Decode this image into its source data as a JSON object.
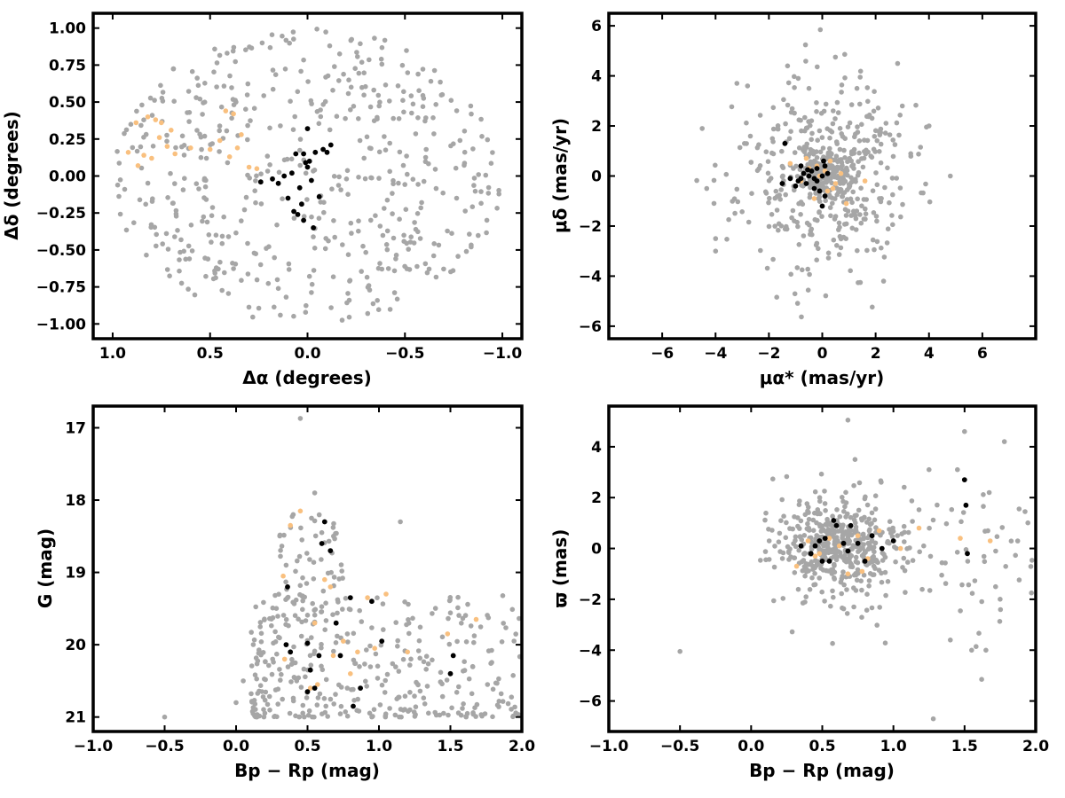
{
  "colors": {
    "field_stars": "#a6a6a6",
    "members_black": "#000000",
    "members_orange": "#f9c07f",
    "axes": "#000000",
    "background": "#ffffff"
  },
  "chart_data": [
    {
      "id": "sky",
      "type": "scatter",
      "title": "",
      "xlabel": "Δα (degrees)",
      "ylabel": "Δδ (degrees)",
      "xlim": [
        1.1,
        -1.1
      ],
      "ylim": [
        -1.1,
        1.1
      ],
      "x_inverted": true,
      "xticks": [
        1.0,
        0.5,
        0.0,
        -0.5,
        -1.0
      ],
      "xtick_labels": [
        "1.0",
        "0.5",
        "0.0",
        "−0.5",
        "−1.0"
      ],
      "yticks": [
        1.0,
        0.75,
        0.5,
        0.25,
        0.0,
        -0.25,
        -0.5,
        -0.75,
        -1.0
      ],
      "ytick_labels": [
        "1.00",
        "0.75",
        "0.50",
        "0.25",
        "0.00",
        "−0.25",
        "−0.50",
        "−0.75",
        "−1.00"
      ],
      "grid": false,
      "series": [
        {
          "color_key": "field_stars",
          "random": {
            "seed": 11,
            "n": 520,
            "shape": "ellipse",
            "cx": 0.0,
            "cy": 0.0,
            "rx": 1.0,
            "ry": 1.0
          }
        },
        {
          "color_key": "members_orange",
          "x": [
            0.92,
            0.87,
            0.84,
            0.8,
            0.78,
            0.75,
            0.72,
            0.7,
            0.68,
            0.82,
            0.6,
            0.5,
            0.45,
            0.4,
            0.38,
            0.36,
            0.34,
            0.3,
            0.42,
            0.26,
            0.88,
            0.76
          ],
          "y": [
            0.16,
            0.07,
            0.14,
            0.12,
            0.38,
            0.36,
            0.2,
            0.31,
            0.15,
            0.4,
            0.19,
            0.18,
            0.24,
            0.13,
            0.42,
            0.19,
            0.28,
            0.06,
            0.44,
            0.05,
            0.36,
            0.26
          ]
        },
        {
          "color_key": "members_black",
          "x": [
            0.24,
            0.18,
            0.15,
            0.12,
            0.1,
            0.08,
            0.06,
            0.05,
            0.04,
            0.03,
            0.02,
            0.01,
            0.0,
            -0.01,
            -0.02,
            -0.03,
            -0.04,
            -0.06,
            -0.08,
            -0.1,
            -0.12,
            0.07,
            0.02,
            0.0
          ],
          "y": [
            -0.04,
            -0.02,
            -0.05,
            0.0,
            -0.15,
            0.02,
            0.15,
            -0.26,
            -0.08,
            -0.19,
            -0.3,
            0.09,
            0.06,
            0.1,
            -0.03,
            -0.35,
            0.16,
            -0.14,
            0.18,
            0.16,
            0.21,
            -0.24,
            0.15,
            0.32
          ]
        }
      ]
    },
    {
      "id": "proper-motion",
      "type": "scatter",
      "title": "",
      "xlabel": "μα* (mas/yr)",
      "ylabel": "μδ (mas/yr)",
      "xlim": [
        -8,
        8
      ],
      "ylim": [
        -6.5,
        6.5
      ],
      "xticks": [
        -6,
        -4,
        -2,
        0,
        2,
        4,
        6
      ],
      "xtick_labels": [
        "−6",
        "−4",
        "−2",
        "0",
        "2",
        "4",
        "6"
      ],
      "yticks": [
        6,
        4,
        2,
        0,
        -2,
        -4,
        -6
      ],
      "ytick_labels": [
        "6",
        "4",
        "2",
        "0",
        "−2",
        "−4",
        "−6"
      ],
      "grid": false,
      "series": [
        {
          "color_key": "field_stars",
          "random": {
            "seed": 23,
            "n": 430,
            "shape": "gauss",
            "cx": 0.0,
            "cy": 0.0,
            "sx": 1.6,
            "sy": 1.9
          }
        },
        {
          "color_key": "field_stars",
          "random": {
            "seed": 29,
            "n": 140,
            "shape": "gauss",
            "cx": 0.0,
            "cy": 0.0,
            "sx": 0.45,
            "sy": 0.35
          }
        },
        {
          "color_key": "field_stars",
          "x": [
            -4.5,
            -4.0,
            -3.2,
            -2.8,
            -1.3,
            -0.9,
            1.3,
            3.0,
            4.0,
            4.8,
            -4.0,
            -0.5,
            2.3
          ],
          "y": [
            1.9,
            -3.0,
            3.7,
            3.6,
            4.4,
            3.9,
            3.5,
            2.8,
            2.0,
            0.0,
            -2.5,
            3.5,
            -4.2
          ]
        },
        {
          "color_key": "members_orange",
          "x": [
            -1.2,
            -0.8,
            -0.5,
            -0.3,
            -0.1,
            0.1,
            0.3,
            0.5,
            0.7,
            0.9,
            -0.6,
            0.2,
            1.6,
            -0.2,
            0.4
          ],
          "y": [
            0.5,
            -0.2,
            0.3,
            -0.9,
            0.0,
            0.2,
            0.6,
            -0.3,
            0.1,
            -1.1,
            0.7,
            -0.6,
            -0.2,
            0.4,
            -0.5
          ]
        },
        {
          "color_key": "members_black",
          "x": [
            -1.4,
            -1.2,
            -1.0,
            -0.9,
            -0.8,
            -0.7,
            -0.6,
            -0.5,
            -0.4,
            -0.3,
            -0.2,
            -0.1,
            0.0,
            0.1,
            0.2,
            -1.5,
            -0.8,
            0.0,
            -0.3,
            0.1,
            -0.55,
            -0.2,
            0.05
          ],
          "y": [
            1.3,
            -0.1,
            -0.4,
            -0.2,
            0.4,
            0.1,
            -0.3,
            0.0,
            0.2,
            -0.1,
            0.3,
            -0.6,
            0.0,
            -0.8,
            0.1,
            -0.3,
            -0.1,
            -1.2,
            -0.5,
            0.4,
            0.25,
            -0.2,
            0.6
          ]
        }
      ]
    },
    {
      "id": "cmd",
      "type": "scatter",
      "title": "",
      "xlabel": "Bp − Rp (mag)",
      "ylabel": "G (mag)",
      "xlim": [
        -1.0,
        2.0
      ],
      "ylim": [
        16.7,
        21.2
      ],
      "y_inverted": true,
      "xticks": [
        -1.0,
        -0.5,
        0.0,
        0.5,
        1.0,
        1.5,
        2.0
      ],
      "xtick_labels": [
        "−1.0",
        "−0.5",
        "0.0",
        "0.5",
        "1.0",
        "1.5",
        "2.0"
      ],
      "yticks": [
        21,
        20,
        19,
        18,
        17
      ],
      "ytick_labels": [
        "21",
        "20",
        "19",
        "18",
        "17"
      ],
      "grid": false,
      "series": [
        {
          "color_key": "field_stars",
          "random": {
            "seed": 37,
            "n": 360,
            "shape": "box-skew",
            "x0": 0.1,
            "x1": 2.0,
            "y0": 19.3,
            "y1": 21.0
          }
        },
        {
          "color_key": "field_stars",
          "random": {
            "seed": 41,
            "n": 60,
            "shape": "box",
            "x0": 0.3,
            "x1": 0.75,
            "y0": 18.2,
            "y1": 19.6
          }
        },
        {
          "color_key": "field_stars",
          "x": [
            -0.5,
            0.45,
            0.55,
            1.15,
            0.0,
            0.05,
            0.6,
            0.4,
            0.35
          ],
          "y": [
            21.0,
            16.87,
            17.9,
            18.3,
            20.8,
            20.5,
            18.45,
            18.2,
            18.9
          ]
        },
        {
          "color_key": "members_orange",
          "x": [
            0.34,
            0.38,
            0.45,
            0.52,
            0.57,
            0.62,
            0.68,
            0.75,
            0.8,
            0.85,
            0.92,
            1.05,
            1.2,
            1.48,
            1.68,
            0.55,
            0.66,
            0.97,
            0.33
          ],
          "y": [
            20.2,
            18.35,
            18.15,
            20.6,
            20.55,
            19.1,
            20.15,
            19.95,
            20.4,
            20.1,
            19.35,
            19.3,
            20.1,
            19.85,
            19.65,
            19.7,
            19.2,
            20.05,
            19.05
          ]
        },
        {
          "color_key": "members_black",
          "x": [
            0.35,
            0.38,
            0.5,
            0.52,
            0.55,
            0.6,
            0.62,
            0.66,
            0.7,
            0.73,
            0.8,
            0.82,
            0.87,
            0.95,
            1.02,
            1.5,
            1.52,
            0.36,
            0.5,
            0.58
          ],
          "y": [
            20.0,
            20.1,
            20.65,
            20.35,
            20.6,
            18.6,
            18.3,
            18.7,
            19.7,
            20.15,
            19.35,
            20.85,
            20.6,
            19.4,
            19.95,
            20.4,
            20.15,
            19.2,
            19.98,
            20.15
          ]
        }
      ]
    },
    {
      "id": "parallax",
      "type": "scatter",
      "title": "",
      "xlabel": "Bp − Rp (mag)",
      "ylabel": "ϖ (mas)",
      "xlim": [
        -1.0,
        2.0
      ],
      "ylim": [
        -7.2,
        5.6
      ],
      "xticks": [
        -1.0,
        -0.5,
        0.0,
        0.5,
        1.0,
        1.5,
        2.0
      ],
      "xtick_labels": [
        "−1.0",
        "−0.5",
        "0.0",
        "0.5",
        "1.0",
        "1.5",
        "2.0"
      ],
      "yticks": [
        4,
        2,
        0,
        -2,
        -4,
        -6
      ],
      "ytick_labels": [
        "4",
        "2",
        "0",
        "−2",
        "−4",
        "−6"
      ],
      "grid": false,
      "series": [
        {
          "color_key": "field_stars",
          "random": {
            "seed": 53,
            "n": 380,
            "shape": "gauss",
            "cx": 0.65,
            "cy": 0.0,
            "sx": 0.22,
            "sy": 0.9
          }
        },
        {
          "color_key": "field_stars",
          "random": {
            "seed": 59,
            "n": 140,
            "shape": "box-gauss",
            "x0": 0.1,
            "x1": 2.0,
            "cy": 0.0,
            "sy": 1.5
          }
        },
        {
          "color_key": "field_stars",
          "x": [
            -0.5,
            0.68,
            1.28,
            1.62,
            1.5,
            1.45,
            1.55,
            1.4,
            1.78,
            1.97,
            0.73,
            1.65,
            1.25
          ],
          "y": [
            -4.05,
            5.05,
            -6.7,
            -5.15,
            4.6,
            3.1,
            -4.0,
            -3.6,
            4.2,
            -1.75,
            3.5,
            -4.0,
            3.1
          ]
        },
        {
          "color_key": "members_orange",
          "x": [
            0.32,
            0.4,
            0.48,
            0.55,
            0.62,
            0.68,
            0.75,
            0.82,
            0.9,
            1.05,
            1.18,
            1.47,
            1.68,
            0.45,
            0.78
          ],
          "y": [
            -0.7,
            0.3,
            -0.2,
            0.4,
            0.1,
            -1.0,
            0.5,
            -0.4,
            0.7,
            0.0,
            0.8,
            0.4,
            0.3,
            -0.3,
            -0.9
          ]
        },
        {
          "color_key": "members_black",
          "x": [
            0.35,
            0.42,
            0.48,
            0.5,
            0.52,
            0.55,
            0.58,
            0.6,
            0.65,
            0.7,
            0.75,
            0.8,
            0.85,
            0.92,
            1.0,
            1.5,
            1.51,
            1.52,
            0.45,
            0.68
          ],
          "y": [
            0.1,
            -0.2,
            0.3,
            -0.5,
            0.4,
            -0.5,
            1.1,
            0.9,
            0.2,
            0.9,
            0.2,
            -0.5,
            0.5,
            0.0,
            0.3,
            2.7,
            1.7,
            -0.2,
            0.1,
            -0.1
          ]
        }
      ]
    }
  ]
}
